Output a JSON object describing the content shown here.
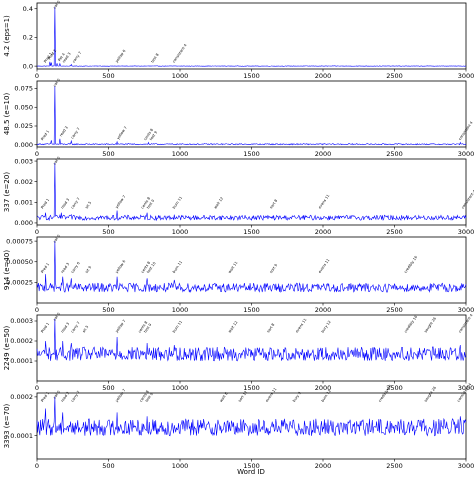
{
  "figure": {
    "xlabel": "Word ID",
    "line_color": "#0000ff",
    "axis_color": "#000000"
  },
  "chart_data": [
    {
      "type": "line",
      "ylabel": "4.2 (eps=1)",
      "xlim": [
        0,
        3000
      ],
      "ylim": [
        -0.02,
        0.44
      ],
      "xticks": [
        0,
        500,
        1000,
        1500,
        2000,
        2500,
        3000
      ],
      "yticks": [
        0.0,
        0.2,
        0.4
      ],
      "ytick_labels": [
        "0.0",
        "0.2",
        "0.4"
      ],
      "series": [
        {
          "base": 0.0,
          "noise": 0.0015,
          "spikes": [
            [
              126,
              0.41
            ],
            [
              90,
              0.03
            ],
            [
              100,
              0.025
            ],
            [
              140,
              0.02
            ],
            [
              160,
              0.018
            ],
            [
              240,
              0.012
            ]
          ]
        }
      ],
      "annotations": [
        {
          "x": 60,
          "text": "Pred 1"
        },
        {
          "x": 90,
          "text": "Pred 2"
        },
        {
          "x": 126,
          "text": "cat 0"
        },
        {
          "x": 160,
          "text": "Pet 4"
        },
        {
          "x": 190,
          "text": "read 3"
        },
        {
          "x": 260,
          "text": "carry 7"
        },
        {
          "x": 560,
          "text": "yellow 6"
        },
        {
          "x": 810,
          "text": "test 8"
        },
        {
          "x": 960,
          "text": "consistent 4"
        }
      ]
    },
    {
      "type": "line",
      "ylabel": "48.5 (e=10)",
      "xlim": [
        0,
        3000
      ],
      "ylim": [
        -0.003,
        0.085
      ],
      "xticks": [
        0,
        500,
        1000,
        1500,
        2000,
        2500,
        3000
      ],
      "yticks": [
        0.0,
        0.025,
        0.05,
        0.075
      ],
      "ytick_labels": [
        "0.000",
        "0.025",
        "0.050",
        "0.075"
      ],
      "series": [
        {
          "base": 0.0005,
          "noise": 0.0008,
          "spikes": [
            [
              126,
              0.078
            ],
            [
              100,
              0.006
            ],
            [
              160,
              0.008
            ],
            [
              240,
              0.005
            ],
            [
              560,
              0.004
            ],
            [
              780,
              0.003
            ],
            [
              2960,
              0.003
            ]
          ]
        }
      ],
      "annotations": [
        {
          "x": 40,
          "text": "Pred 1"
        },
        {
          "x": 126,
          "text": "cat 0"
        },
        {
          "x": 170,
          "text": "read 3"
        },
        {
          "x": 250,
          "text": "carry 7"
        },
        {
          "x": 570,
          "text": "yellow 7"
        },
        {
          "x": 760,
          "text": "cents 8"
        },
        {
          "x": 800,
          "text": "test 9"
        },
        {
          "x": 2960,
          "text": "consistent 4"
        }
      ]
    },
    {
      "type": "line",
      "ylabel": "337 (e=20)",
      "xlim": [
        0,
        3000
      ],
      "ylim": [
        -0.0001,
        0.0031
      ],
      "xticks": [
        0,
        500,
        1000,
        1500,
        2000,
        2500,
        3000
      ],
      "yticks": [
        0.0,
        0.001,
        0.002,
        0.003
      ],
      "ytick_labels": [
        "0.000",
        "0.001",
        "0.002",
        "0.003"
      ],
      "series": [
        {
          "base": 0.00022,
          "noise": 0.00012,
          "spikes": [
            [
              126,
              0.0029
            ],
            [
              60,
              0.0005
            ],
            [
              170,
              0.0005
            ],
            [
              240,
              0.0004
            ],
            [
              560,
              0.0006
            ],
            [
              770,
              0.0005
            ],
            [
              960,
              0.0004
            ]
          ]
        }
      ],
      "annotations": [
        {
          "x": 40,
          "text": "Pred 1"
        },
        {
          "x": 126,
          "text": "cat 0"
        },
        {
          "x": 180,
          "text": "read 3"
        },
        {
          "x": 250,
          "text": "carry 7"
        },
        {
          "x": 350,
          "text": "sit 5"
        },
        {
          "x": 560,
          "text": "yellow 7"
        },
        {
          "x": 740,
          "text": "cents 8"
        },
        {
          "x": 780,
          "text": "test 9"
        },
        {
          "x": 960,
          "text": "burn 11"
        },
        {
          "x": 1250,
          "text": "wait 12"
        },
        {
          "x": 1640,
          "text": "sort 8"
        },
        {
          "x": 1980,
          "text": "evens 11"
        },
        {
          "x": 2980,
          "text": "consistent 4"
        }
      ]
    },
    {
      "type": "line",
      "ylabel": "914 (e=40)",
      "xlim": [
        0,
        3000
      ],
      "ylim": [
        0.0,
        0.0008
      ],
      "xticks": [
        0,
        500,
        1000,
        1500,
        2000,
        2500,
        3000
      ],
      "yticks": [
        0.00025,
        0.0005,
        0.00075
      ],
      "ytick_labels": [
        "0.00025",
        "0.00050",
        "0.00075"
      ],
      "series": [
        {
          "base": 0.00017,
          "noise": 5.5e-05,
          "spikes": [
            [
              126,
              0.00075
            ],
            [
              60,
              0.00035
            ],
            [
              180,
              0.00032
            ],
            [
              240,
              0.0003
            ],
            [
              560,
              0.00032
            ],
            [
              770,
              0.0003
            ],
            [
              960,
              0.00028
            ]
          ]
        }
      ],
      "annotations": [
        {
          "x": 40,
          "text": "Pred 1"
        },
        {
          "x": 126,
          "text": "cat 0"
        },
        {
          "x": 180,
          "text": "read 3"
        },
        {
          "x": 250,
          "text": "carry 6"
        },
        {
          "x": 350,
          "text": "sit 9"
        },
        {
          "x": 560,
          "text": "yellow 6"
        },
        {
          "x": 740,
          "text": "cents 8"
        },
        {
          "x": 780,
          "text": "test 10"
        },
        {
          "x": 960,
          "text": "burn 11"
        },
        {
          "x": 1350,
          "text": "wait 11"
        },
        {
          "x": 1640,
          "text": "sort 9"
        },
        {
          "x": 1980,
          "text": "evens 11"
        },
        {
          "x": 2580,
          "text": "credibly 16"
        }
      ]
    },
    {
      "type": "line",
      "ylabel": "2249 (e=50)",
      "xlim": [
        0,
        3000
      ],
      "ylim": [
        0.0,
        0.00033
      ],
      "xticks": [
        0,
        500,
        1000,
        1500,
        2000,
        2500,
        3000
      ],
      "yticks": [
        0.0001,
        0.0002,
        0.0003
      ],
      "ytick_labels": [
        "0.0001",
        "0.0002",
        "0.0003"
      ],
      "series": [
        {
          "base": 0.000125,
          "noise": 3.5e-05,
          "spikes": [
            [
              126,
              0.00031
            ],
            [
              60,
              0.0002
            ],
            [
              180,
              0.0002
            ],
            [
              240,
              0.00019
            ],
            [
              560,
              0.00022
            ],
            [
              770,
              0.00019
            ],
            [
              960,
              0.00018
            ],
            [
              2960,
              0.00018
            ]
          ]
        }
      ],
      "annotations": [
        {
          "x": 40,
          "text": "Pred 1"
        },
        {
          "x": 126,
          "text": "cat 0"
        },
        {
          "x": 180,
          "text": "read 3"
        },
        {
          "x": 250,
          "text": "carry 7"
        },
        {
          "x": 330,
          "text": "sit 5"
        },
        {
          "x": 560,
          "text": "yellow 7"
        },
        {
          "x": 720,
          "text": "cents 8"
        },
        {
          "x": 760,
          "text": "test 9"
        },
        {
          "x": 960,
          "text": "burn 11"
        },
        {
          "x": 1350,
          "text": "wait 12"
        },
        {
          "x": 1620,
          "text": "sort 8"
        },
        {
          "x": 1820,
          "text": "evens 11"
        },
        {
          "x": 2000,
          "text": "bury 12"
        },
        {
          "x": 2580,
          "text": "credibly 16"
        },
        {
          "x": 2720,
          "text": "sought 26"
        },
        {
          "x": 2960,
          "text": "consistent 4"
        }
      ]
    },
    {
      "type": "line",
      "ylabel": "3393 (e=70)",
      "xlim": [
        0,
        3000
      ],
      "ylim": [
        4e-05,
        0.00021
      ],
      "xticks": [
        0,
        500,
        1000,
        1500,
        2000,
        2500,
        3000
      ],
      "yticks": [
        0.0001,
        0.0002
      ],
      "ytick_labels": [
        "0.0001",
        "0.0002"
      ],
      "series": [
        {
          "base": 0.000115,
          "noise": 2.2e-05,
          "spikes": [
            [
              126,
              0.0002
            ],
            [
              60,
              0.00017
            ],
            [
              180,
              0.00016
            ],
            [
              560,
              0.00016
            ],
            [
              770,
              0.00015
            ],
            [
              2960,
              0.00015
            ]
          ]
        }
      ],
      "annotations": [
        {
          "x": 40,
          "text": "Pred 1"
        },
        {
          "x": 126,
          "text": "cat 0"
        },
        {
          "x": 180,
          "text": "read 3"
        },
        {
          "x": 250,
          "text": "carry 7"
        },
        {
          "x": 560,
          "text": "yellow 7"
        },
        {
          "x": 730,
          "text": "cents 8"
        },
        {
          "x": 770,
          "text": "test 9"
        },
        {
          "x": 1290,
          "text": "wait 8"
        },
        {
          "x": 1420,
          "text": "sort 12"
        },
        {
          "x": 1610,
          "text": "evens 11"
        },
        {
          "x": 1800,
          "text": "bury 9"
        },
        {
          "x": 2000,
          "text": "burn 12"
        },
        {
          "x": 2400,
          "text": "credibly 16"
        },
        {
          "x": 2720,
          "text": "sought 26"
        },
        {
          "x": 2950,
          "text": "consistent 4"
        }
      ]
    }
  ]
}
